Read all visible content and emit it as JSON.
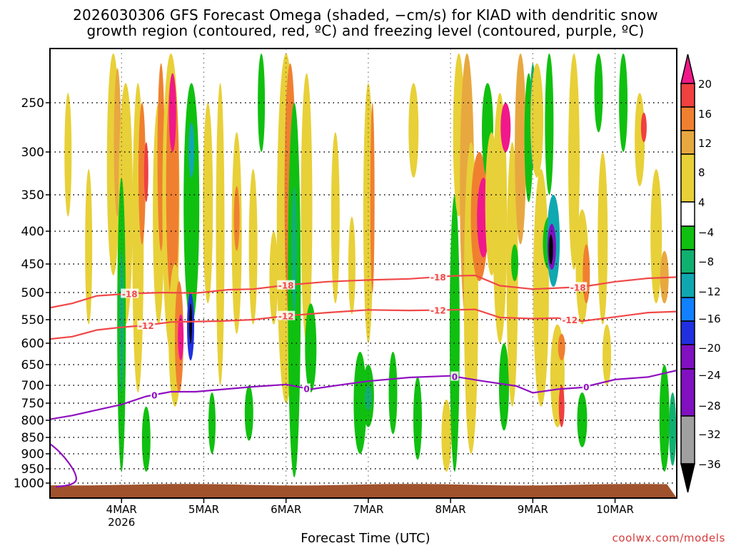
{
  "chart_data": {
    "type": "heatmap",
    "title_line1": "2026030306 GFS Forecast Omega (shaded, −cm/s) for KIAD with dendritic snow",
    "title_line2": "growth region (contoured, red, ºC) and freezing level (contoured, purple, ºC)",
    "xlabel": "Forecast Time (UTC)",
    "ylabel": "",
    "credit": "coolwx.com/models",
    "x_range_days": [
      3.13,
      10.75
    ],
    "x_ticks": [
      {
        "day": 4,
        "label": "4MAR",
        "sub": "2026"
      },
      {
        "day": 5,
        "label": "5MAR",
        "sub": ""
      },
      {
        "day": 6,
        "label": "6MAR",
        "sub": ""
      },
      {
        "day": 7,
        "label": "7MAR",
        "sub": ""
      },
      {
        "day": 8,
        "label": "8MAR",
        "sub": ""
      },
      {
        "day": 9,
        "label": "9MAR",
        "sub": ""
      },
      {
        "day": 10,
        "label": "10MAR",
        "sub": ""
      }
    ],
    "y_levels_hpa": [
      250,
      300,
      350,
      400,
      450,
      500,
      550,
      600,
      650,
      700,
      750,
      800,
      850,
      900,
      950,
      1000
    ],
    "y_range_hpa": [
      1020,
      195
    ],
    "colorbar": {
      "labels": [
        "20",
        "16",
        "12",
        "8",
        "4",
        "−4",
        "−8",
        "−12",
        "−16",
        "−20",
        "−24",
        "−28",
        "−32",
        "−36"
      ],
      "colors": [
        "#f0188a",
        "#f04040",
        "#f08030",
        "#e8a840",
        "#e8d038",
        "#ffffff",
        "#10c010",
        "#10b070",
        "#10a8b0",
        "#1080ff",
        "#2030e0",
        "#8010c0",
        "#a0a0a0",
        "#000000"
      ]
    },
    "contours": [
      {
        "label": "-18",
        "color": "#f04848",
        "points": [
          [
            3.13,
            528
          ],
          [
            3.4,
            520
          ],
          [
            3.7,
            506
          ],
          [
            4.1,
            502
          ],
          [
            4.5,
            500
          ],
          [
            4.9,
            501
          ],
          [
            5.3,
            495
          ],
          [
            5.6,
            494
          ],
          [
            6.0,
            487
          ],
          [
            6.5,
            481
          ],
          [
            7.0,
            478
          ],
          [
            7.5,
            476
          ],
          [
            8.0,
            471
          ],
          [
            8.3,
            470
          ],
          [
            8.6,
            488
          ],
          [
            9.0,
            494
          ],
          [
            9.3,
            492
          ],
          [
            9.6,
            490
          ],
          [
            10.0,
            481
          ],
          [
            10.4,
            475
          ],
          [
            10.75,
            473
          ]
        ],
        "label_days": [
          4.1,
          6.0,
          7.85,
          9.55
        ]
      },
      {
        "label": "-12",
        "color": "#f04848",
        "points": [
          [
            3.13,
            591
          ],
          [
            3.4,
            586
          ],
          [
            3.7,
            572
          ],
          [
            4.0,
            566
          ],
          [
            4.3,
            562
          ],
          [
            4.6,
            555
          ],
          [
            4.9,
            554
          ],
          [
            5.2,
            553
          ],
          [
            5.6,
            550
          ],
          [
            6.0,
            543
          ],
          [
            6.5,
            537
          ],
          [
            7.0,
            532
          ],
          [
            7.5,
            533
          ],
          [
            8.0,
            532
          ],
          [
            8.3,
            531
          ],
          [
            8.6,
            546
          ],
          [
            9.0,
            548
          ],
          [
            9.3,
            547
          ],
          [
            9.6,
            553
          ],
          [
            10.0,
            545
          ],
          [
            10.4,
            537
          ],
          [
            10.75,
            535
          ]
        ],
        "label_days": [
          4.3,
          6.0,
          7.85,
          9.45
        ]
      },
      {
        "label": "0",
        "color": "#9010c0",
        "points": [
          [
            3.13,
            797
          ],
          [
            3.4,
            786
          ],
          [
            3.7,
            770
          ],
          [
            4.0,
            754
          ],
          [
            4.3,
            731
          ],
          [
            4.6,
            718
          ],
          [
            4.9,
            718
          ],
          [
            5.2,
            712
          ],
          [
            5.6,
            704
          ],
          [
            6.0,
            698
          ],
          [
            6.3,
            711
          ],
          [
            6.7,
            698
          ],
          [
            7.0,
            690
          ],
          [
            7.5,
            681
          ],
          [
            8.0,
            677
          ],
          [
            8.4,
            690
          ],
          [
            8.8,
            702
          ],
          [
            9.0,
            721
          ],
          [
            9.3,
            711
          ],
          [
            9.6,
            706
          ],
          [
            10.0,
            686
          ],
          [
            10.4,
            680
          ],
          [
            10.75,
            664
          ]
        ],
        "label_days": [
          4.4,
          6.25,
          8.05,
          9.65
        ]
      }
    ]
  }
}
